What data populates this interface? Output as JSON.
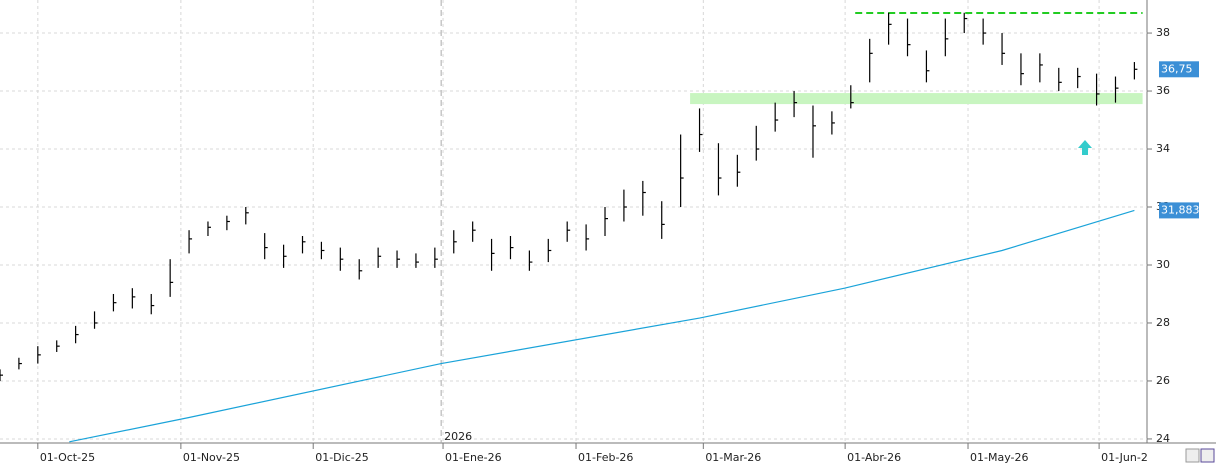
{
  "chart_data": {
    "type": "ohlc",
    "xlim": [
      0,
      182
    ],
    "xticks": [
      {
        "value": 6,
        "label": "01-Oct-25"
      },
      {
        "value": 28.7,
        "label": "01-Nov-25"
      },
      {
        "value": 49.7,
        "label": "01-Dic-25"
      },
      {
        "value": 70.3,
        "label": "01-Ene-26"
      },
      {
        "value": 91.4,
        "label": "01-Feb-26"
      },
      {
        "value": 111.6,
        "label": "01-Mar-26"
      },
      {
        "value": 134.1,
        "label": "01-Abr-26"
      },
      {
        "value": 153.6,
        "label": "01-May-26"
      },
      {
        "value": 174.4,
        "label": "01-Jun-2"
      }
    ],
    "year_marker": {
      "value": 70,
      "label": "2026"
    },
    "ylim": [
      23.86,
      39.14
    ],
    "yticks": [
      24,
      26,
      28,
      30,
      32,
      34,
      36,
      38
    ],
    "grid": true,
    "bars": {
      "name": "Price",
      "color": "#000000",
      "x": [
        0,
        3,
        6,
        9,
        12,
        15,
        18,
        21,
        24,
        27,
        30,
        33,
        36,
        39,
        42,
        45,
        48,
        51,
        54,
        57,
        60,
        63,
        66,
        69,
        72,
        75,
        78,
        81,
        84,
        87,
        90,
        93,
        96,
        99,
        102,
        105,
        108,
        111,
        114,
        117,
        120,
        123,
        126,
        129,
        132,
        135,
        138,
        141,
        144,
        147,
        150,
        153,
        156,
        159,
        162,
        165,
        168,
        171,
        174,
        177,
        180
      ],
      "high": [
        26.4,
        26.8,
        27.2,
        27.4,
        27.9,
        28.4,
        29.0,
        29.2,
        29.0,
        30.2,
        31.2,
        31.5,
        31.7,
        32.0,
        31.1,
        30.7,
        31.0,
        30.8,
        30.6,
        30.2,
        30.6,
        30.5,
        30.4,
        30.6,
        31.2,
        31.5,
        30.9,
        31.0,
        30.5,
        30.9,
        31.5,
        31.4,
        32.0,
        32.6,
        32.9,
        32.2,
        34.5,
        35.4,
        34.2,
        33.8,
        34.8,
        35.6,
        36.0,
        35.5,
        35.3,
        36.2,
        37.8,
        38.7,
        38.5,
        37.4,
        38.5,
        38.7,
        38.5,
        38.0,
        37.3,
        37.3,
        36.8,
        36.8,
        36.6,
        36.5,
        37.0
      ],
      "low": [
        26.0,
        26.4,
        26.6,
        27.0,
        27.3,
        27.8,
        28.4,
        28.5,
        28.3,
        28.9,
        30.4,
        31.0,
        31.2,
        31.4,
        30.2,
        29.9,
        30.4,
        30.2,
        29.8,
        29.5,
        29.9,
        29.9,
        29.9,
        29.9,
        30.4,
        30.8,
        29.8,
        30.2,
        29.8,
        30.1,
        30.8,
        30.5,
        31.0,
        31.5,
        31.7,
        30.9,
        32.0,
        33.9,
        32.4,
        32.7,
        33.6,
        34.6,
        35.1,
        33.7,
        34.5,
        35.4,
        36.3,
        37.6,
        37.2,
        36.3,
        37.2,
        38.0,
        37.6,
        36.9,
        36.2,
        36.3,
        36.0,
        36.1,
        35.5,
        35.6,
        36.4
      ],
      "close": [
        26.2,
        26.6,
        26.9,
        27.2,
        27.6,
        28.0,
        28.7,
        28.9,
        28.6,
        29.4,
        30.9,
        31.3,
        31.5,
        31.8,
        30.6,
        30.3,
        30.8,
        30.5,
        30.2,
        29.8,
        30.3,
        30.2,
        30.1,
        30.2,
        30.8,
        31.2,
        30.4,
        30.6,
        30.1,
        30.5,
        31.2,
        30.9,
        31.6,
        32.0,
        32.5,
        31.4,
        33.0,
        34.5,
        33.0,
        33.2,
        34.0,
        35.0,
        35.6,
        34.8,
        34.9,
        35.6,
        37.3,
        38.3,
        37.6,
        36.7,
        37.8,
        38.5,
        38.0,
        37.3,
        36.6,
        36.9,
        36.3,
        36.5,
        35.9,
        36.1,
        36.75
      ],
      "last_label": "36,75",
      "label_color": "#3b8fd6"
    },
    "moving_average": {
      "name": "MA",
      "color": "#1aa3d9",
      "x": [
        11,
        30,
        70,
        111,
        134,
        159,
        180
      ],
      "values": [
        23.9,
        24.74,
        26.6,
        28.17,
        29.2,
        30.5,
        31.883
      ],
      "last_label": "31,883",
      "label_color": "#3b8fd6"
    },
    "resistance": {
      "value": 38.69,
      "x": [
        135.7,
        181.3
      ],
      "color": "#22cc22"
    },
    "support_band": {
      "values": [
        35.55,
        35.93
      ],
      "x": [
        109.5,
        181.3
      ],
      "color": "#c8f5c0"
    }
  }
}
